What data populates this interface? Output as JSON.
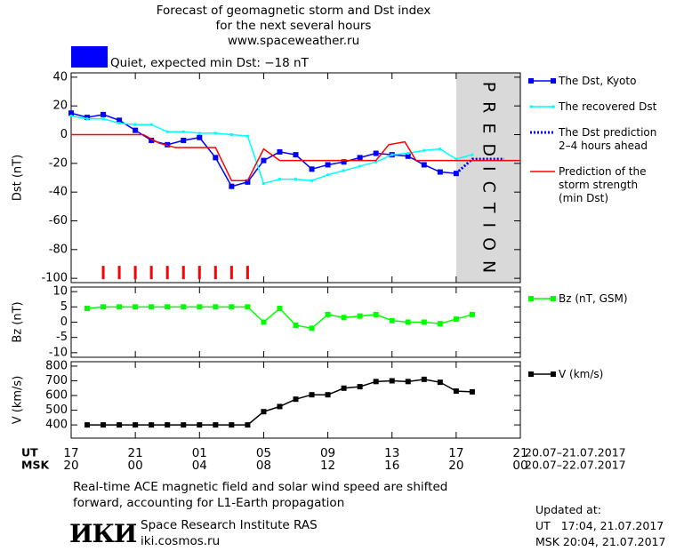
{
  "header": {
    "title_lines": [
      "Forecast of geomagnetic storm and Dst index",
      "for the next several hours",
      "www.spaceweather.ru"
    ],
    "status": "Quiet, expected min Dst: −18 nT",
    "status_color": "#0000ff"
  },
  "chart_data": [
    {
      "type": "line",
      "y_label": "Dst (nT)",
      "xlim": [
        0,
        28
      ],
      "xticks": [
        0,
        4,
        8,
        12,
        16,
        20,
        24,
        28
      ],
      "ylim": [
        -103,
        43
      ],
      "yticks": [
        40,
        20,
        0,
        -20,
        -40,
        -60,
        -80,
        -100
      ],
      "prediction_band": {
        "label": "PREDICTION",
        "x": [
          24,
          28
        ],
        "color": "#d9d9d9"
      },
      "storm_markers": {
        "color": "#ff0000",
        "x": [
          2,
          3,
          4,
          5,
          6,
          7,
          8,
          9,
          10,
          11
        ]
      },
      "series": [
        {
          "name": "The Dst, Kyoto",
          "color": "#0000ff",
          "style": "solid",
          "marker": "square",
          "x": [
            0,
            1,
            2,
            3,
            4,
            5,
            6,
            7,
            8,
            9,
            10,
            11,
            12,
            13,
            14,
            15,
            16,
            17,
            18,
            19,
            20,
            21,
            22,
            23,
            24
          ],
          "values": [
            15,
            12,
            14,
            10,
            3,
            -4,
            -7,
            -4,
            -2,
            -16,
            -36,
            -33,
            -18,
            -12,
            -14,
            -24,
            -21,
            -19,
            -16,
            -13,
            -14,
            -15,
            -21,
            -26,
            -27
          ]
        },
        {
          "name": "The recovered Dst",
          "color": "#00ffff",
          "style": "solid",
          "marker": "dot",
          "x": [
            0,
            1,
            2,
            3,
            4,
            5,
            6,
            7,
            8,
            9,
            10,
            11,
            12,
            13,
            14,
            15,
            16,
            17,
            18,
            19,
            20,
            21,
            22,
            23,
            24,
            25
          ],
          "values": [
            13,
            11,
            11,
            8,
            7,
            7,
            2,
            2,
            1,
            1,
            0,
            -1,
            -34,
            -31,
            -31,
            -32,
            -28,
            -25,
            -22,
            -19,
            -14,
            -13,
            -11,
            -10,
            -17,
            -14
          ]
        },
        {
          "name": "The Dst prediction 2–4 hours ahead",
          "color": "#0000ff",
          "style": "dotted",
          "x": [
            24,
            25,
            26,
            27
          ],
          "values": [
            -27,
            -17,
            -17,
            -17
          ]
        },
        {
          "name": "Prediction of the storm strength (min Dst)",
          "color": "#ff0000",
          "style": "solid",
          "x": [
            0,
            4.5,
            5.5,
            6.5,
            9,
            10,
            11,
            12,
            13,
            19,
            19.8,
            20.8,
            21.5,
            28
          ],
          "values": [
            0,
            0,
            -6,
            -9,
            -9,
            -32,
            -32,
            -10,
            -18,
            -18,
            -7,
            -5,
            -18,
            -18
          ]
        }
      ]
    },
    {
      "type": "line",
      "y_label": "Bz (nT)",
      "xlim": [
        0,
        28
      ],
      "xticks": [
        0,
        4,
        8,
        12,
        16,
        20,
        24,
        28
      ],
      "ylim": [
        -11.5,
        11.5
      ],
      "yticks": [
        10,
        5,
        0,
        -5,
        -10
      ],
      "series": [
        {
          "name": "Bz (nT, GSM)",
          "color": "#00ff00",
          "style": "solid",
          "marker": "square",
          "x": [
            1,
            2,
            3,
            4,
            5,
            6,
            7,
            8,
            9,
            10,
            11,
            12,
            13,
            14,
            15,
            16,
            17,
            18,
            19,
            20,
            21,
            22,
            23,
            24,
            25
          ],
          "values": [
            4.5,
            5,
            5,
            5,
            5,
            5,
            5,
            5,
            5,
            5,
            5,
            0,
            4.5,
            -1,
            -2,
            2.5,
            1.5,
            2,
            2.5,
            0.5,
            0,
            0,
            -0.5,
            1,
            2.5
          ]
        }
      ]
    },
    {
      "type": "line",
      "y_label": "V (km/s)",
      "xlim": [
        0,
        28
      ],
      "xticks": [
        0,
        4,
        8,
        12,
        16,
        20,
        24,
        28
      ],
      "ylim": [
        310,
        830
      ],
      "yticks": [
        800,
        700,
        600,
        500,
        400
      ],
      "series": [
        {
          "name": "V (km/s)",
          "color": "#000000",
          "style": "solid",
          "marker": "square",
          "x": [
            1,
            2,
            3,
            4,
            5,
            6,
            7,
            8,
            9,
            10,
            11,
            12,
            13,
            14,
            15,
            16,
            17,
            18,
            19,
            20,
            21,
            22,
            23,
            24,
            25
          ],
          "values": [
            400,
            400,
            400,
            400,
            400,
            400,
            400,
            400,
            400,
            400,
            400,
            490,
            525,
            575,
            605,
            605,
            650,
            660,
            695,
            700,
            695,
            710,
            690,
            630,
            625
          ]
        }
      ]
    }
  ],
  "time_axis": {
    "ut_label": "UT",
    "msk_label": "MSK",
    "ut_ticks": [
      {
        "value": 0,
        "label": "17"
      },
      {
        "value": 4,
        "label": "21"
      },
      {
        "value": 8,
        "label": "01"
      },
      {
        "value": 12,
        "label": "05"
      },
      {
        "value": 16,
        "label": "09"
      },
      {
        "value": 20,
        "label": "13"
      },
      {
        "value": 24,
        "label": "17"
      },
      {
        "value": 28,
        "label": "21"
      }
    ],
    "msk_ticks": [
      {
        "value": 0,
        "label": "20"
      },
      {
        "value": 4,
        "label": "00"
      },
      {
        "value": 8,
        "label": "04"
      },
      {
        "value": 12,
        "label": "08"
      },
      {
        "value": 16,
        "label": "12"
      },
      {
        "value": 20,
        "label": "16"
      },
      {
        "value": 24,
        "label": "20"
      },
      {
        "value": 28,
        "label": "00"
      }
    ],
    "ut_range": "20.07–21.07.2017",
    "msk_range": "20.07–22.07.2017"
  },
  "footer": {
    "note_lines": [
      "Real-time ACE magnetic field and solar wind speed are shifted",
      "forward, accounting for L1-Earth propagation"
    ],
    "logo": "ИКИ",
    "institute": "Space Research Institute RAS",
    "site": "iki.cosmos.ru",
    "updated_lines": [
      "Updated at:",
      "UT   17:04, 21.07.2017",
      "MSK 20:04, 21.07.2017"
    ]
  }
}
